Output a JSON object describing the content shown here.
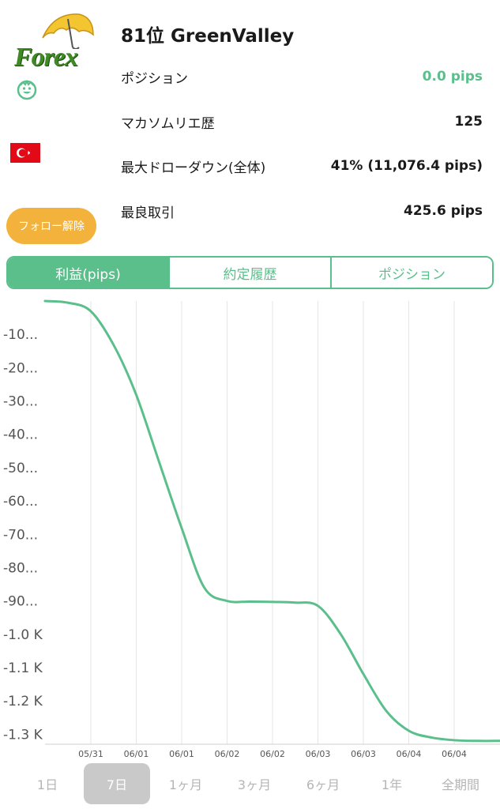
{
  "profile": {
    "logo_text": "Forex",
    "rank_name": "81位 GreenValley",
    "follow_button": "フォロー解除"
  },
  "stats": [
    {
      "label": "ポジション",
      "value": "0.0 pips",
      "accent": "#5bbf8c"
    },
    {
      "label": "マカソムリエ歴",
      "value": "125"
    },
    {
      "label": "最大ドローダウン(全体)",
      "value": "41% (11,076.4 pips)"
    },
    {
      "label": "最良取引",
      "value": "425.6 pips"
    }
  ],
  "tabs": [
    {
      "label": "利益(pips)",
      "active": true
    },
    {
      "label": "約定履歴",
      "active": false
    },
    {
      "label": "ポジション",
      "active": false
    }
  ],
  "colors": {
    "accent_green": "#5bbf8c",
    "follow_orange": "#f2b23c",
    "flag_red": "#e30a17"
  },
  "icons": [
    "forex-logo",
    "smiley-avatar-icon",
    "turkey-flag-icon"
  ],
  "chart_data": {
    "type": "line",
    "title": "",
    "xlabel": "",
    "ylabel": "",
    "x_tick_labels": [
      "05/31",
      "06/01",
      "06/01",
      "06/02",
      "06/02",
      "06/03",
      "06/03",
      "06/04",
      "06/04"
    ],
    "y_tick_labels": [
      "-10...",
      "-20...",
      "-30...",
      "-40...",
      "-50...",
      "-60...",
      "-70...",
      "-80...",
      "-90...",
      "-1.0 K",
      "-1.1 K",
      "-1.2 K",
      "-1.3 K"
    ],
    "ylim": [
      -1330,
      0
    ],
    "grid": "vertical",
    "series": [
      {
        "color": "#5bbf8c",
        "x": [
          "05/31 00:00",
          "05/31 06:00",
          "05/31 12:00",
          "05/31 18:00",
          "06/01 00:00",
          "06/01 06:00",
          "06/01 12:00",
          "06/01 18:00",
          "06/02 00:00",
          "06/02 06:00",
          "06/02 12:00",
          "06/02 18:00",
          "06/03 00:00",
          "06/03 06:00",
          "06/03 12:00",
          "06/03 18:00",
          "06/04 00:00",
          "06/04 06:00",
          "06/04 12:00",
          "06/04 18:00",
          "06/05 00:00"
        ],
        "values": [
          0,
          -5,
          -30,
          -130,
          -280,
          -480,
          -680,
          -860,
          -900,
          -902,
          -903,
          -905,
          -915,
          -1000,
          -1120,
          -1230,
          -1290,
          -1310,
          -1318,
          -1320,
          -1320
        ]
      }
    ]
  },
  "periods": [
    {
      "label": "1日",
      "active": false
    },
    {
      "label": "7日",
      "active": true
    },
    {
      "label": "1ヶ月",
      "active": false
    },
    {
      "label": "3ヶ月",
      "active": false
    },
    {
      "label": "6ヶ月",
      "active": false
    },
    {
      "label": "1年",
      "active": false
    },
    {
      "label": "全期間",
      "active": false
    }
  ]
}
